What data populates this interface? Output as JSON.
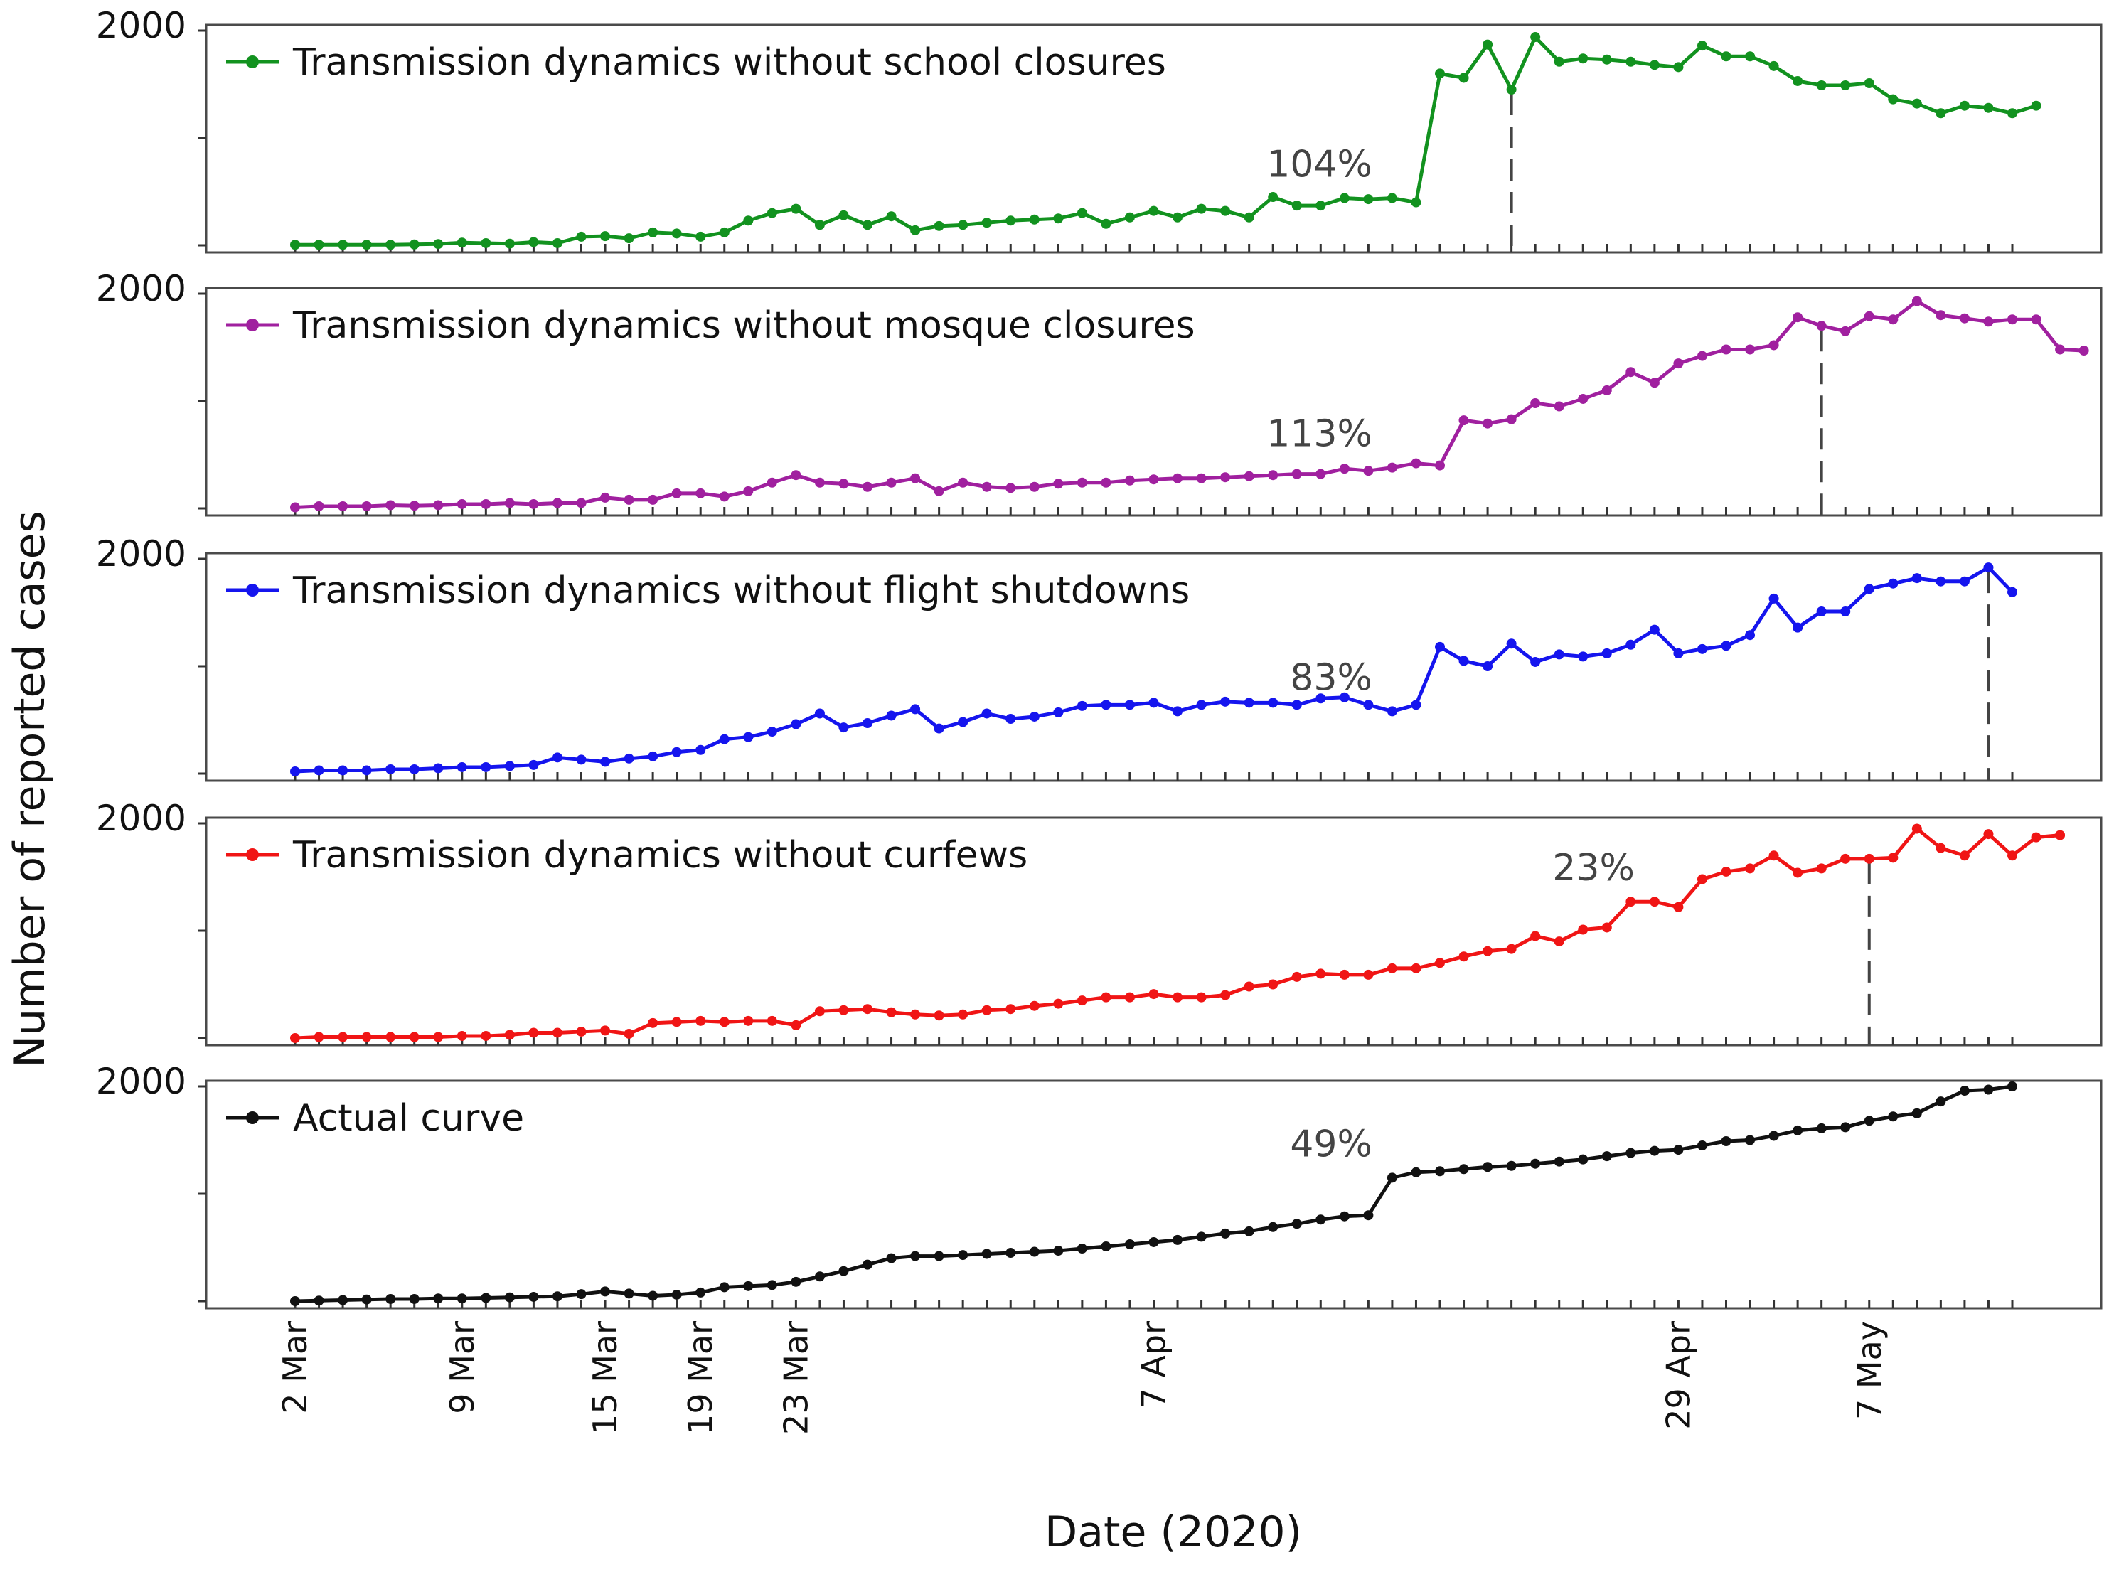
{
  "chart_data": {
    "type": "line",
    "xlabel": "Date (2020)",
    "ylabel": "Number of reported cases",
    "ylim": [
      0,
      2000
    ],
    "y_tick_label": "2000",
    "x_tick_labels": [
      {
        "label": "2 Mar",
        "day": 0
      },
      {
        "label": "9 Mar",
        "day": 7
      },
      {
        "label": "15 Mar",
        "day": 13
      },
      {
        "label": "19 Mar",
        "day": 17
      },
      {
        "label": "23 Mar",
        "day": 21
      },
      {
        "label": "7 Apr",
        "day": 36
      },
      {
        "label": "29 Apr",
        "day": 58
      },
      {
        "label": "7 May",
        "day": 66
      }
    ],
    "x_range_days": [
      0,
      72
    ],
    "series": [
      {
        "name": "Transmission dynamics without school closures",
        "color": "#12921f",
        "annotation": "104%",
        "annotation_day": 46,
        "peak_day": 51,
        "values": [
          5,
          5,
          5,
          5,
          5,
          8,
          12,
          25,
          20,
          15,
          30,
          20,
          80,
          85,
          65,
          120,
          110,
          80,
          120,
          230,
          300,
          340,
          190,
          280,
          190,
          270,
          140,
          180,
          190,
          210,
          230,
          240,
          250,
          300,
          200,
          260,
          320,
          260,
          340,
          320,
          260,
          450,
          370,
          370,
          440,
          430,
          440,
          400,
          1600,
          1560,
          1870,
          1450,
          1940,
          1710,
          1740,
          1730,
          1710,
          1680,
          1660,
          1860,
          1760,
          1760,
          1670,
          1530,
          1490,
          1490,
          1510,
          1360,
          1320,
          1230,
          1300,
          1280,
          1230,
          1300
        ]
      },
      {
        "name": "Transmission dynamics without mosque closures",
        "color": "#a0209f",
        "annotation": "113%",
        "annotation_day": 46,
        "peak_day": 64,
        "values": [
          10,
          20,
          20,
          20,
          30,
          25,
          30,
          40,
          40,
          50,
          40,
          50,
          50,
          100,
          80,
          80,
          140,
          140,
          110,
          160,
          240,
          310,
          240,
          230,
          200,
          240,
          280,
          160,
          240,
          200,
          190,
          200,
          230,
          240,
          240,
          260,
          270,
          280,
          280,
          290,
          300,
          310,
          320,
          320,
          370,
          350,
          380,
          420,
          400,
          820,
          790,
          830,
          980,
          950,
          1020,
          1100,
          1270,
          1170,
          1350,
          1420,
          1480,
          1480,
          1520,
          1780,
          1700,
          1650,
          1790,
          1760,
          1930,
          1800,
          1770,
          1740,
          1760,
          1760,
          1480,
          1470
        ]
      },
      {
        "name": "Transmission dynamics without flight shutdowns",
        "color": "#1515ee",
        "annotation": "83%",
        "annotation_day": 46,
        "peak_day": 71,
        "values": [
          20,
          30,
          30,
          30,
          40,
          40,
          50,
          60,
          60,
          70,
          80,
          150,
          130,
          110,
          140,
          160,
          200,
          220,
          320,
          340,
          390,
          460,
          560,
          430,
          470,
          540,
          600,
          420,
          480,
          560,
          510,
          530,
          570,
          630,
          640,
          640,
          660,
          580,
          640,
          670,
          660,
          660,
          640,
          700,
          710,
          640,
          580,
          640,
          1180,
          1050,
          1000,
          1210,
          1040,
          1110,
          1090,
          1120,
          1200,
          1340,
          1120,
          1160,
          1190,
          1290,
          1630,
          1360,
          1510,
          1510,
          1720,
          1770,
          1820,
          1790,
          1790,
          1920,
          1690
        ]
      },
      {
        "name": "Transmission dynamics without curfews",
        "color": "#f01515",
        "annotation": "23%",
        "annotation_day": 57,
        "peak_day": 66,
        "values": [
          0,
          10,
          10,
          10,
          10,
          10,
          10,
          20,
          20,
          30,
          50,
          50,
          60,
          70,
          40,
          140,
          150,
          160,
          150,
          160,
          160,
          120,
          250,
          260,
          270,
          240,
          220,
          210,
          220,
          260,
          270,
          300,
          320,
          350,
          380,
          380,
          410,
          380,
          380,
          400,
          480,
          500,
          570,
          600,
          590,
          590,
          650,
          650,
          700,
          760,
          810,
          830,
          950,
          900,
          1010,
          1030,
          1270,
          1270,
          1220,
          1480,
          1550,
          1580,
          1700,
          1540,
          1580,
          1670,
          1670,
          1680,
          1950,
          1770,
          1700,
          1900,
          1700,
          1870,
          1890
        ]
      },
      {
        "name": "Actual curve",
        "color": "#111111",
        "annotation": "49%",
        "annotation_day": 46,
        "peak_day": null,
        "values": [
          0,
          5,
          10,
          15,
          20,
          20,
          25,
          25,
          30,
          35,
          40,
          45,
          65,
          90,
          70,
          50,
          60,
          80,
          130,
          140,
          150,
          180,
          230,
          280,
          340,
          400,
          420,
          420,
          430,
          440,
          450,
          460,
          470,
          490,
          510,
          530,
          550,
          570,
          600,
          630,
          650,
          690,
          720,
          760,
          790,
          800,
          1150,
          1200,
          1210,
          1230,
          1250,
          1260,
          1280,
          1300,
          1320,
          1350,
          1380,
          1400,
          1410,
          1450,
          1490,
          1500,
          1540,
          1590,
          1610,
          1620,
          1680,
          1720,
          1750,
          1860,
          1960,
          1970,
          2000
        ]
      }
    ]
  }
}
